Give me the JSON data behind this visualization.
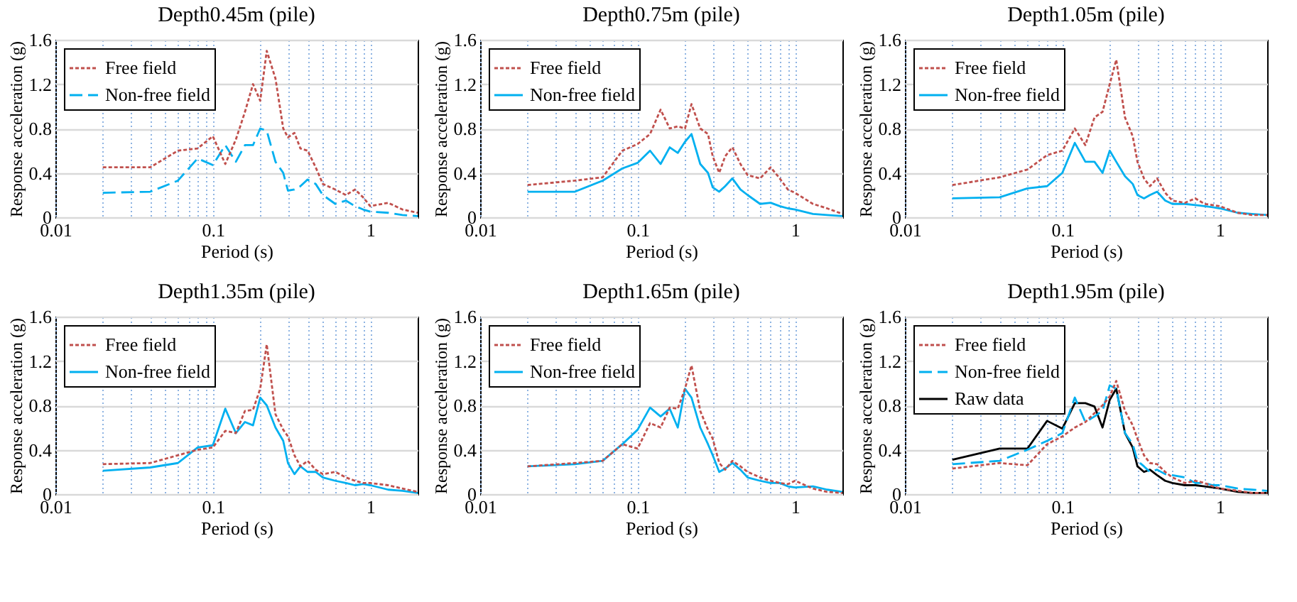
{
  "chart_data": [
    {
      "type": "line",
      "title": "Depth0.45m (pile)",
      "xlabel": "Period (s)",
      "ylabel": "Response acceleration (g)",
      "log": "x",
      "grid": true,
      "legend": "top left",
      "xlim": [
        0.01,
        2
      ],
      "ylim": [
        0,
        1.6
      ],
      "yticks": [
        0,
        0.4,
        0.8,
        1.2,
        1.6
      ],
      "xticks": [
        0.01,
        {
          "value": 0.02,
          "label": null
        },
        {
          "value": 0.03,
          "label": null
        },
        {
          "value": 0.04,
          "label": null
        },
        {
          "value": 0.05,
          "label": null
        },
        {
          "value": 0.06,
          "label": null
        },
        {
          "value": 0.07,
          "label": null
        },
        {
          "value": 0.08,
          "label": null
        },
        {
          "value": 0.09,
          "label": null
        },
        0.1,
        {
          "value": 0.2,
          "label": null
        },
        {
          "value": 0.3,
          "label": null
        },
        {
          "value": 0.4,
          "label": null
        },
        {
          "value": 0.5,
          "label": null
        },
        {
          "value": 0.6,
          "label": null
        },
        {
          "value": 0.7,
          "label": null
        },
        {
          "value": 0.8,
          "label": null
        },
        {
          "value": 0.9,
          "label": null
        },
        1
      ],
      "x": [
        0.02,
        0.04,
        0.06,
        0.08,
        0.1,
        0.12,
        0.14,
        0.16,
        0.18,
        0.2,
        0.22,
        0.25,
        0.28,
        0.3,
        0.33,
        0.36,
        0.4,
        0.45,
        0.5,
        0.6,
        0.7,
        0.8,
        0.9,
        1,
        1.3,
        1.6,
        2
      ],
      "series": [
        {
          "name": "Free field",
          "color": "#c0504d",
          "line_style": "dotted",
          "values": [
            0.45,
            0.45,
            0.6,
            0.62,
            0.73,
            0.48,
            0.7,
            0.95,
            1.2,
            1.05,
            1.5,
            1.25,
            0.8,
            0.72,
            0.76,
            0.62,
            0.6,
            0.45,
            0.3,
            0.25,
            0.2,
            0.25,
            0.18,
            0.1,
            0.13,
            0.07,
            0.04
          ]
        },
        {
          "name": "Non-free field",
          "color": "#00b0f0",
          "line_style": "dashed",
          "values": [
            0.22,
            0.23,
            0.33,
            0.53,
            0.47,
            0.65,
            0.5,
            0.65,
            0.65,
            0.8,
            0.78,
            0.5,
            0.4,
            0.24,
            0.25,
            0.28,
            0.34,
            0.3,
            0.2,
            0.12,
            0.15,
            0.1,
            0.07,
            0.05,
            0.04,
            0.02,
            0.01
          ]
        }
      ]
    },
    {
      "type": "line",
      "title": "Depth0.75m (pile)",
      "xlabel": "Period (s)",
      "ylabel": "Response acceleration (g)",
      "log": "x",
      "grid": true,
      "legend": "top left",
      "xlim": [
        0.01,
        2
      ],
      "ylim": [
        0,
        1.6
      ],
      "yticks": [
        0,
        0.4,
        0.8,
        1.2,
        1.6
      ],
      "xticks": [
        0.01,
        {
          "value": 0.02,
          "label": null
        },
        {
          "value": 0.03,
          "label": null
        },
        {
          "value": 0.04,
          "label": null
        },
        {
          "value": 0.05,
          "label": null
        },
        {
          "value": 0.06,
          "label": null
        },
        {
          "value": 0.07,
          "label": null
        },
        {
          "value": 0.08,
          "label": null
        },
        {
          "value": 0.09,
          "label": null
        },
        0.1,
        {
          "value": 0.2,
          "label": null
        },
        {
          "value": 0.3,
          "label": null
        },
        {
          "value": 0.4,
          "label": null
        },
        {
          "value": 0.5,
          "label": null
        },
        {
          "value": 0.6,
          "label": null
        },
        {
          "value": 0.7,
          "label": null
        },
        {
          "value": 0.8,
          "label": null
        },
        {
          "value": 0.9,
          "label": null
        },
        1
      ],
      "x": [
        0.02,
        0.04,
        0.06,
        0.08,
        0.1,
        0.12,
        0.14,
        0.16,
        0.18,
        0.2,
        0.22,
        0.25,
        0.28,
        0.3,
        0.33,
        0.36,
        0.4,
        0.45,
        0.5,
        0.6,
        0.7,
        0.8,
        0.9,
        1,
        1.3,
        1.6,
        2
      ],
      "series": [
        {
          "name": "Free field",
          "color": "#c0504d",
          "line_style": "dotted",
          "values": [
            0.29,
            0.33,
            0.36,
            0.6,
            0.66,
            0.75,
            0.97,
            0.8,
            0.82,
            0.8,
            1.02,
            0.8,
            0.75,
            0.55,
            0.4,
            0.55,
            0.63,
            0.48,
            0.38,
            0.35,
            0.45,
            0.35,
            0.25,
            0.22,
            0.12,
            0.08,
            0.03
          ]
        },
        {
          "name": "Non-free field",
          "color": "#00b0f0",
          "line_style": "solid",
          "values": [
            0.23,
            0.23,
            0.33,
            0.44,
            0.49,
            0.6,
            0.48,
            0.63,
            0.58,
            0.68,
            0.75,
            0.48,
            0.4,
            0.27,
            0.23,
            0.28,
            0.35,
            0.25,
            0.2,
            0.12,
            0.13,
            0.1,
            0.08,
            0.07,
            0.03,
            0.02,
            0.01
          ]
        }
      ]
    },
    {
      "type": "line",
      "title": "Depth1.05m (pile)",
      "xlabel": "Period (s)",
      "ylabel": "Response acceleration (g)",
      "log": "x",
      "grid": true,
      "legend": "top left",
      "xlim": [
        0.01,
        2
      ],
      "ylim": [
        0,
        1.6
      ],
      "yticks": [
        0,
        0.4,
        0.8,
        1.2,
        1.6
      ],
      "xticks": [
        0.01,
        {
          "value": 0.02,
          "label": null
        },
        {
          "value": 0.03,
          "label": null
        },
        {
          "value": 0.04,
          "label": null
        },
        {
          "value": 0.05,
          "label": null
        },
        {
          "value": 0.06,
          "label": null
        },
        {
          "value": 0.07,
          "label": null
        },
        {
          "value": 0.08,
          "label": null
        },
        {
          "value": 0.09,
          "label": null
        },
        0.1,
        {
          "value": 0.2,
          "label": null
        },
        {
          "value": 0.3,
          "label": null
        },
        {
          "value": 0.4,
          "label": null
        },
        {
          "value": 0.5,
          "label": null
        },
        {
          "value": 0.6,
          "label": null
        },
        {
          "value": 0.7,
          "label": null
        },
        {
          "value": 0.8,
          "label": null
        },
        {
          "value": 0.9,
          "label": null
        },
        1
      ],
      "x": [
        0.02,
        0.04,
        0.06,
        0.08,
        0.1,
        0.12,
        0.14,
        0.16,
        0.18,
        0.2,
        0.22,
        0.25,
        0.28,
        0.3,
        0.33,
        0.36,
        0.4,
        0.45,
        0.5,
        0.6,
        0.7,
        0.8,
        0.9,
        1,
        1.3,
        1.6,
        2
      ],
      "series": [
        {
          "name": "Free field",
          "color": "#c0504d",
          "line_style": "dotted",
          "values": [
            0.29,
            0.36,
            0.43,
            0.56,
            0.6,
            0.8,
            0.65,
            0.9,
            0.95,
            1.2,
            1.42,
            0.9,
            0.73,
            0.5,
            0.35,
            0.28,
            0.35,
            0.22,
            0.15,
            0.13,
            0.17,
            0.12,
            0.11,
            0.1,
            0.04,
            0.02,
            0.02
          ]
        },
        {
          "name": "Non-free field",
          "color": "#00b0f0",
          "line_style": "solid",
          "values": [
            0.17,
            0.18,
            0.26,
            0.28,
            0.4,
            0.67,
            0.5,
            0.5,
            0.4,
            0.6,
            0.5,
            0.37,
            0.3,
            0.2,
            0.17,
            0.2,
            0.23,
            0.15,
            0.12,
            0.12,
            0.11,
            0.1,
            0.09,
            0.08,
            0.04,
            0.03,
            0.02
          ]
        }
      ]
    },
    {
      "type": "line",
      "title": "Depth1.35m (pile)",
      "xlabel": "Period (s)",
      "ylabel": "Response acceleration (g)",
      "log": "x",
      "grid": true,
      "legend": "top left",
      "xlim": [
        0.01,
        2
      ],
      "ylim": [
        0,
        1.6
      ],
      "yticks": [
        0,
        0.4,
        0.8,
        1.2,
        1.6
      ],
      "xticks": [
        0.01,
        {
          "value": 0.02,
          "label": null
        },
        {
          "value": 0.03,
          "label": null
        },
        {
          "value": 0.04,
          "label": null
        },
        {
          "value": 0.05,
          "label": null
        },
        {
          "value": 0.06,
          "label": null
        },
        {
          "value": 0.07,
          "label": null
        },
        {
          "value": 0.08,
          "label": null
        },
        {
          "value": 0.09,
          "label": null
        },
        0.1,
        {
          "value": 0.2,
          "label": null
        },
        {
          "value": 0.3,
          "label": null
        },
        {
          "value": 0.4,
          "label": null
        },
        {
          "value": 0.5,
          "label": null
        },
        {
          "value": 0.6,
          "label": null
        },
        {
          "value": 0.7,
          "label": null
        },
        {
          "value": 0.8,
          "label": null
        },
        {
          "value": 0.9,
          "label": null
        },
        1
      ],
      "x": [
        0.02,
        0.04,
        0.06,
        0.08,
        0.1,
        0.12,
        0.14,
        0.16,
        0.18,
        0.2,
        0.22,
        0.25,
        0.28,
        0.3,
        0.33,
        0.36,
        0.4,
        0.45,
        0.5,
        0.6,
        0.7,
        0.8,
        0.9,
        1,
        1.3,
        1.6,
        2
      ],
      "series": [
        {
          "name": "Free field",
          "color": "#c0504d",
          "line_style": "dotted",
          "values": [
            0.27,
            0.28,
            0.35,
            0.4,
            0.42,
            0.57,
            0.55,
            0.75,
            0.76,
            0.95,
            1.35,
            0.72,
            0.58,
            0.52,
            0.35,
            0.25,
            0.3,
            0.22,
            0.18,
            0.2,
            0.15,
            0.12,
            0.1,
            0.1,
            0.08,
            0.05,
            0.02
          ]
        },
        {
          "name": "Non-free field",
          "color": "#00b0f0",
          "line_style": "solid",
          "values": [
            0.21,
            0.24,
            0.28,
            0.42,
            0.44,
            0.77,
            0.55,
            0.65,
            0.62,
            0.87,
            0.8,
            0.6,
            0.48,
            0.28,
            0.18,
            0.25,
            0.2,
            0.2,
            0.15,
            0.12,
            0.1,
            0.08,
            0.09,
            0.08,
            0.04,
            0.03,
            0.01
          ]
        }
      ]
    },
    {
      "type": "line",
      "title": "Depth1.65m (pile)",
      "xlabel": "Period (s)",
      "ylabel": "Response acceleration (g)",
      "log": "x",
      "grid": true,
      "legend": "top left",
      "xlim": [
        0.01,
        2
      ],
      "ylim": [
        0,
        1.6
      ],
      "yticks": [
        0,
        0.4,
        0.8,
        1.2,
        1.6
      ],
      "xticks": [
        0.01,
        {
          "value": 0.02,
          "label": null
        },
        {
          "value": 0.03,
          "label": null
        },
        {
          "value": 0.04,
          "label": null
        },
        {
          "value": 0.05,
          "label": null
        },
        {
          "value": 0.06,
          "label": null
        },
        {
          "value": 0.07,
          "label": null
        },
        {
          "value": 0.08,
          "label": null
        },
        {
          "value": 0.09,
          "label": null
        },
        0.1,
        {
          "value": 0.2,
          "label": null
        },
        {
          "value": 0.3,
          "label": null
        },
        {
          "value": 0.4,
          "label": null
        },
        {
          "value": 0.5,
          "label": null
        },
        {
          "value": 0.6,
          "label": null
        },
        {
          "value": 0.7,
          "label": null
        },
        {
          "value": 0.8,
          "label": null
        },
        {
          "value": 0.9,
          "label": null
        },
        1
      ],
      "x": [
        0.02,
        0.04,
        0.06,
        0.08,
        0.1,
        0.12,
        0.14,
        0.16,
        0.18,
        0.2,
        0.22,
        0.25,
        0.28,
        0.3,
        0.33,
        0.36,
        0.4,
        0.45,
        0.5,
        0.6,
        0.7,
        0.8,
        0.9,
        1,
        1.3,
        1.6,
        2
      ],
      "series": [
        {
          "name": "Free field",
          "color": "#c0504d",
          "line_style": "dotted",
          "values": [
            0.25,
            0.28,
            0.3,
            0.45,
            0.41,
            0.64,
            0.6,
            0.78,
            0.77,
            0.95,
            1.16,
            0.75,
            0.58,
            0.5,
            0.28,
            0.22,
            0.3,
            0.25,
            0.2,
            0.15,
            0.12,
            0.1,
            0.09,
            0.12,
            0.05,
            0.02,
            0.01
          ]
        },
        {
          "name": "Non-free field",
          "color": "#00b0f0",
          "line_style": "solid",
          "values": [
            0.25,
            0.27,
            0.3,
            0.45,
            0.58,
            0.78,
            0.7,
            0.77,
            0.6,
            0.95,
            0.87,
            0.6,
            0.45,
            0.35,
            0.2,
            0.23,
            0.28,
            0.22,
            0.15,
            0.12,
            0.1,
            0.1,
            0.07,
            0.06,
            0.07,
            0.04,
            0.02
          ]
        }
      ]
    },
    {
      "type": "line",
      "title": "Depth1.95m (pile)",
      "xlabel": "Period (s)",
      "ylabel": "Response acceleration (g)",
      "log": "x",
      "grid": true,
      "legend": "top left",
      "xlim": [
        0.01,
        2
      ],
      "ylim": [
        0,
        1.6
      ],
      "yticks": [
        0,
        0.4,
        0.8,
        1.2,
        1.6
      ],
      "xticks": [
        0.01,
        {
          "value": 0.02,
          "label": null
        },
        {
          "value": 0.03,
          "label": null
        },
        {
          "value": 0.04,
          "label": null
        },
        {
          "value": 0.05,
          "label": null
        },
        {
          "value": 0.06,
          "label": null
        },
        {
          "value": 0.07,
          "label": null
        },
        {
          "value": 0.08,
          "label": null
        },
        {
          "value": 0.09,
          "label": null
        },
        0.1,
        {
          "value": 0.2,
          "label": null
        },
        {
          "value": 0.3,
          "label": null
        },
        {
          "value": 0.4,
          "label": null
        },
        {
          "value": 0.5,
          "label": null
        },
        {
          "value": 0.6,
          "label": null
        },
        {
          "value": 0.7,
          "label": null
        },
        {
          "value": 0.8,
          "label": null
        },
        {
          "value": 0.9,
          "label": null
        },
        1
      ],
      "x": [
        0.02,
        0.04,
        0.06,
        0.08,
        0.1,
        0.12,
        0.14,
        0.16,
        0.18,
        0.2,
        0.22,
        0.25,
        0.28,
        0.3,
        0.33,
        0.36,
        0.4,
        0.45,
        0.5,
        0.6,
        0.7,
        0.8,
        0.9,
        1,
        1.3,
        1.6,
        2
      ],
      "series": [
        {
          "name": "Free field",
          "color": "#c0504d",
          "line_style": "dotted",
          "values": [
            0.23,
            0.28,
            0.26,
            0.45,
            0.52,
            0.6,
            0.65,
            0.73,
            0.8,
            0.88,
            1.02,
            0.75,
            0.62,
            0.5,
            0.35,
            0.28,
            0.27,
            0.2,
            0.15,
            0.1,
            0.12,
            0.1,
            0.07,
            0.05,
            0.03,
            0.01,
            0.01
          ]
        },
        {
          "name": "Non-free field",
          "color": "#00b0f0",
          "line_style": "dashed",
          "values": [
            0.27,
            0.3,
            0.4,
            0.48,
            0.55,
            0.87,
            0.65,
            0.7,
            0.75,
            0.98,
            0.95,
            0.55,
            0.45,
            0.3,
            0.25,
            0.2,
            0.22,
            0.18,
            0.17,
            0.15,
            0.1,
            0.1,
            0.08,
            0.08,
            0.05,
            0.04,
            0.03
          ]
        },
        {
          "name": "Raw data",
          "color": "#000000",
          "line_style": "solid",
          "values": [
            0.31,
            0.41,
            0.41,
            0.66,
            0.59,
            0.82,
            0.82,
            0.79,
            0.6,
            0.85,
            0.95,
            0.55,
            0.42,
            0.25,
            0.2,
            0.22,
            0.17,
            0.12,
            0.1,
            0.08,
            0.08,
            0.07,
            0.06,
            0.05,
            0.02,
            0.01,
            0.01
          ]
        }
      ]
    }
  ]
}
